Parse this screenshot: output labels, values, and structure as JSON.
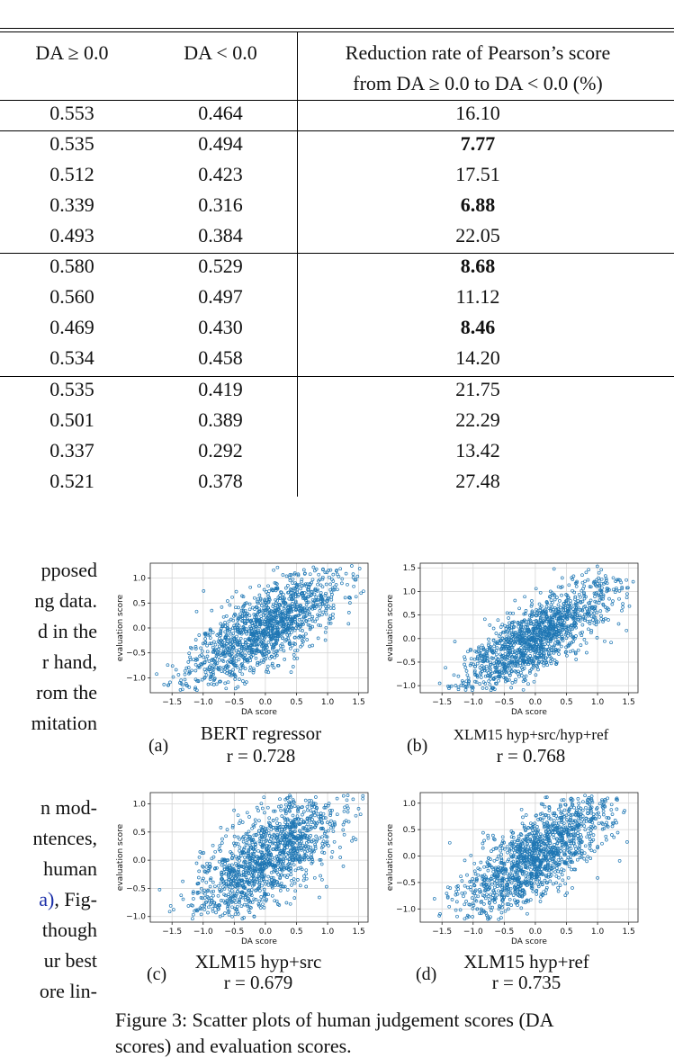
{
  "table": {
    "headers": {
      "col1": "DA ≥ 0.0",
      "col2": "DA < 0.0",
      "col3_line1": "Reduction rate of Pearson’s score",
      "col3_line2": "from DA ≥ 0.0 to DA < 0.0 (%)"
    },
    "rows": [
      {
        "a": "0.553",
        "b": "0.464",
        "c": "16.10",
        "bold": false
      },
      {
        "a": "0.535",
        "b": "0.494",
        "c": "7.77",
        "bold": true
      },
      {
        "a": "0.512",
        "b": "0.423",
        "c": "17.51",
        "bold": false
      },
      {
        "a": "0.339",
        "b": "0.316",
        "c": "6.88",
        "bold": true
      },
      {
        "a": "0.493",
        "b": "0.384",
        "c": "22.05",
        "bold": false
      },
      {
        "a": "0.580",
        "b": "0.529",
        "c": "8.68",
        "bold": true
      },
      {
        "a": "0.560",
        "b": "0.497",
        "c": "11.12",
        "bold": false
      },
      {
        "a": "0.469",
        "b": "0.430",
        "c": "8.46",
        "bold": true
      },
      {
        "a": "0.534",
        "b": "0.458",
        "c": "14.20",
        "bold": false
      },
      {
        "a": "0.535",
        "b": "0.419",
        "c": "21.75",
        "bold": false
      },
      {
        "a": "0.501",
        "b": "0.389",
        "c": "22.29",
        "bold": false
      },
      {
        "a": "0.337",
        "b": "0.292",
        "c": "13.42",
        "bold": false
      },
      {
        "a": "0.521",
        "b": "0.378",
        "c": "27.48",
        "bold": false
      }
    ]
  },
  "body_text": {
    "lines": [
      "pposed",
      "ng data.",
      "d in the",
      "r hand,",
      "rom the",
      "mitation",
      "",
      "n mod-",
      "ntences,",
      "human",
      "a), Fig-",
      "though",
      "ur best",
      "ore lin-"
    ],
    "link_fragment": "a)",
    "link_rest": ", Fig-"
  },
  "figure": {
    "caption_line1": "Figure 3: Scatter plots of human judgement scores (DA",
    "caption_line2": "scores) and evaluation scores.",
    "subplots": [
      {
        "letter": "(a)",
        "title": "BERT regressor",
        "r": "r = 0.728",
        "xlabel": "DA score",
        "ylabel": "evaluation score",
        "xticks": [
          "−1.5",
          "−1.0",
          "−0.5",
          "0.0",
          "0.5",
          "1.0",
          "1.5"
        ],
        "yticks": [
          "1.0",
          "0.5",
          "0.0",
          "−0.5",
          "−1.0"
        ],
        "xlim": [
          -1.85,
          1.65
        ],
        "ylim": [
          -1.3,
          1.3
        ]
      },
      {
        "letter": "(b)",
        "title": "XLM15 hyp+src/hyp+ref",
        "r": "r = 0.768",
        "xlabel": "DA score",
        "ylabel": "evaluation score",
        "xticks": [
          "−1.5",
          "−1.0",
          "−0.5",
          "0.0",
          "0.5",
          "1.0",
          "1.5"
        ],
        "yticks": [
          "1.5",
          "1.0",
          "0.5",
          "0.0",
          "−0.5",
          "−1.0"
        ],
        "xlim": [
          -1.85,
          1.65
        ],
        "ylim": [
          -1.15,
          1.6
        ]
      },
      {
        "letter": "(c)",
        "title": "XLM15 hyp+src",
        "r": "r = 0.679",
        "xlabel": "DA score",
        "ylabel": "evaluation score",
        "xticks": [
          "−1.5",
          "−1.0",
          "−0.5",
          "0.0",
          "0.5",
          "1.0",
          "1.5"
        ],
        "yticks": [
          "1.0",
          "0.5",
          "0.0",
          "−0.5",
          "−1.0"
        ],
        "xlim": [
          -1.85,
          1.65
        ],
        "ylim": [
          -1.1,
          1.2
        ]
      },
      {
        "letter": "(d)",
        "title": "XLM15 hyp+ref",
        "r": "r = 0.735",
        "xlabel": "DA score",
        "ylabel": "evaluation score",
        "xticks": [
          "−1.5",
          "−1.0",
          "−0.5",
          "0.0",
          "0.5",
          "1.0",
          "1.5"
        ],
        "yticks": [
          "1.0",
          "0.5",
          "0.0",
          "−0.5",
          "−1.0"
        ],
        "xlim": [
          -1.85,
          1.65
        ],
        "ylim": [
          -1.25,
          1.2
        ]
      }
    ]
  },
  "chart_data": [
    {
      "type": "scatter",
      "xlabel": "DA score",
      "ylabel": "evaluation score",
      "xlim": [
        -1.85,
        1.65
      ],
      "ylim": [
        -1.3,
        1.3
      ],
      "grid": true,
      "correlation": 0.728,
      "color": "#1f77b4"
    },
    {
      "type": "scatter",
      "xlabel": "DA score",
      "ylabel": "evaluation score",
      "xlim": [
        -1.85,
        1.65
      ],
      "ylim": [
        -1.15,
        1.6
      ],
      "grid": true,
      "correlation": 0.768,
      "color": "#1f77b4"
    },
    {
      "type": "scatter",
      "xlabel": "DA score",
      "ylabel": "evaluation score",
      "xlim": [
        -1.85,
        1.65
      ],
      "ylim": [
        -1.1,
        1.2
      ],
      "grid": true,
      "correlation": 0.679,
      "color": "#1f77b4"
    },
    {
      "type": "scatter",
      "xlabel": "DA score",
      "ylabel": "evaluation score",
      "xlim": [
        -1.85,
        1.65
      ],
      "ylim": [
        -1.25,
        1.2
      ],
      "grid": true,
      "correlation": 0.735,
      "color": "#1f77b4"
    }
  ]
}
